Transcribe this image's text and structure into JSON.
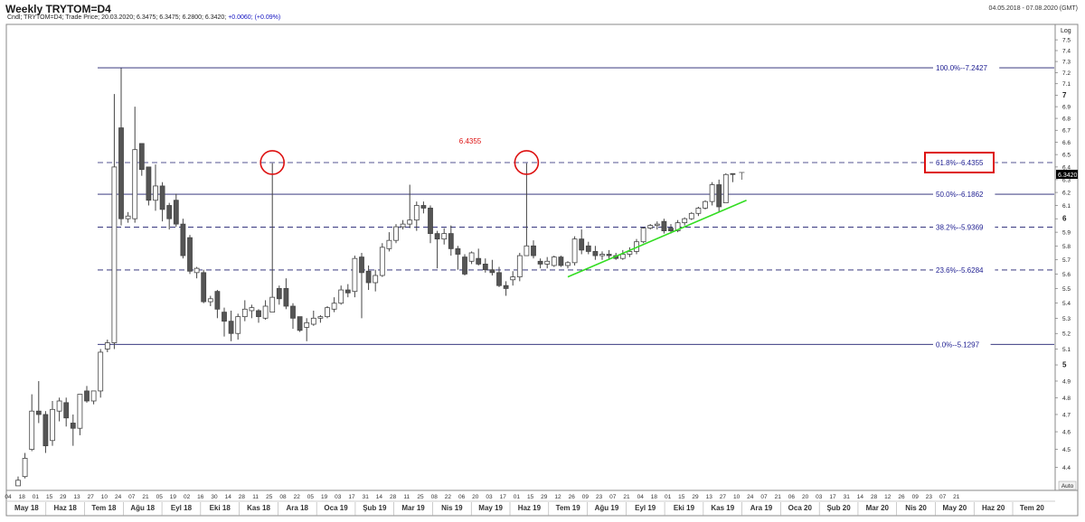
{
  "window_title": "Weekly TRYTOM=D4",
  "date_range": "04.05.2018 - 07.08.2020 (GMT)",
  "info": {
    "ric": "Cndl; TRYTOM=D4; Trade Price; 20.03.2020; 6.3475; 6.3475; 6.2800; 6.3420;",
    "change": "+0.0060; (+0.09%)"
  },
  "auto_label": "Auto",
  "colors": {
    "frame": "#888888",
    "candle_up_fill": "#ffffff",
    "candle_down_fill": "#555555",
    "candle_outline": "#444444",
    "fib_line": "#1c1c6e",
    "fib_label": "#1c1c90",
    "highlight_red": "#dd1111",
    "trendline_green": "#33dd22",
    "price_tag_bg": "#000000",
    "price_tag_text": "#ffffff"
  },
  "chart_data": {
    "type": "candlestick",
    "y_scale": "log",
    "y_axis_label": "Log",
    "ylim": [
      4.29,
      7.62
    ],
    "y_ticks": [
      "4.4",
      "4.5",
      "4.6",
      "4.7",
      "4.8",
      "4.9",
      "5",
      "5.1",
      "5.2",
      "5.3",
      "5.4",
      "5.5",
      "5.6",
      "5.7",
      "5.8",
      "5.9",
      "6",
      "6.1",
      "6.2",
      "6.3",
      "6.4",
      "6.5",
      "6.6",
      "6.7",
      "6.8",
      "6.9",
      "7",
      "7.1",
      "7.2",
      "7.3",
      "7.4",
      "7.5"
    ],
    "y_major_ticks": [
      "5",
      "6",
      "7"
    ],
    "x_day_ticks": [
      "04",
      "18",
      "01",
      "15",
      "29",
      "13",
      "27",
      "10",
      "24",
      "07",
      "21",
      "05",
      "19",
      "02",
      "16",
      "30",
      "14",
      "28",
      "11",
      "25",
      "08",
      "22",
      "05",
      "19",
      "03",
      "17",
      "31",
      "14",
      "28",
      "11",
      "25",
      "08",
      "22",
      "06",
      "20",
      "03",
      "17",
      "01",
      "15",
      "29",
      "12",
      "26",
      "09",
      "23",
      "07",
      "21",
      "04",
      "18",
      "01",
      "15",
      "29",
      "13",
      "27",
      "10",
      "24",
      "07",
      "21",
      "06",
      "20",
      "03",
      "17",
      "31",
      "14",
      "28",
      "12",
      "26",
      "09",
      "23",
      "07",
      "21"
    ],
    "x_month_labels": [
      "May 18",
      "Haz 18",
      "Tem 18",
      "Ağu 18",
      "Eyl 18",
      "Eki 18",
      "Kas 18",
      "Ara 18",
      "Oca 19",
      "Şub 19",
      "Mar 19",
      "Nis 19",
      "May 19",
      "Haz 19",
      "Tem 19",
      "Ağu 19",
      "Eyl 19",
      "Eki 19",
      "Kas 19",
      "Ara 19",
      "Oca 20",
      "Şub 20",
      "Mar 20",
      "Nis 20",
      "May 20",
      "Haz 20",
      "Tem 20"
    ],
    "candles": [
      [
        4.3,
        4.35,
        4.3,
        4.33
      ],
      [
        4.35,
        4.48,
        4.34,
        4.45
      ],
      [
        4.5,
        4.82,
        4.49,
        4.72
      ],
      [
        4.72,
        4.9,
        4.65,
        4.7
      ],
      [
        4.7,
        4.72,
        4.48,
        4.52
      ],
      [
        4.55,
        4.78,
        4.52,
        4.73
      ],
      [
        4.72,
        4.8,
        4.66,
        4.78
      ],
      [
        4.77,
        4.8,
        4.63,
        4.68
      ],
      [
        4.65,
        4.7,
        4.52,
        4.62
      ],
      [
        4.62,
        4.82,
        4.58,
        4.82
      ],
      [
        4.84,
        4.87,
        4.77,
        4.78
      ],
      [
        4.78,
        4.84,
        4.76,
        4.84
      ],
      [
        4.84,
        5.1,
        4.8,
        5.08
      ],
      [
        5.1,
        5.16,
        5.08,
        5.14
      ],
      [
        5.14,
        7.01,
        5.1,
        6.4
      ],
      [
        6.72,
        7.24,
        5.95,
        6.0
      ],
      [
        6.0,
        6.05,
        5.97,
        6.02
      ],
      [
        6.0,
        6.9,
        5.97,
        6.54
      ],
      [
        6.59,
        6.59,
        6.33,
        6.38
      ],
      [
        6.4,
        6.4,
        6.1,
        6.14
      ],
      [
        6.14,
        6.42,
        6.06,
        6.25
      ],
      [
        6.25,
        6.28,
        5.98,
        6.07
      ],
      [
        6.1,
        6.12,
        5.92,
        6.0
      ],
      [
        6.14,
        6.19,
        5.94,
        5.96
      ],
      [
        5.96,
        6.0,
        5.71,
        5.73
      ],
      [
        5.86,
        5.88,
        5.6,
        5.62
      ],
      [
        5.61,
        5.65,
        5.57,
        5.64
      ],
      [
        5.61,
        5.63,
        5.4,
        5.41
      ],
      [
        5.41,
        5.45,
        5.38,
        5.43
      ],
      [
        5.48,
        5.49,
        5.3,
        5.36
      ],
      [
        5.34,
        5.37,
        5.18,
        5.28
      ],
      [
        5.28,
        5.35,
        5.15,
        5.2
      ],
      [
        5.2,
        5.33,
        5.16,
        5.31
      ],
      [
        5.31,
        5.42,
        5.28,
        5.36
      ],
      [
        5.35,
        5.39,
        5.3,
        5.37
      ],
      [
        5.35,
        5.36,
        5.27,
        5.31
      ],
      [
        5.3,
        5.42,
        5.29,
        5.38
      ],
      [
        5.34,
        6.43,
        5.34,
        5.44
      ],
      [
        5.5,
        5.52,
        5.39,
        5.43
      ],
      [
        5.5,
        5.57,
        5.36,
        5.38
      ],
      [
        5.38,
        5.4,
        5.23,
        5.3
      ],
      [
        5.31,
        5.31,
        5.21,
        5.22
      ],
      [
        5.24,
        5.3,
        5.15,
        5.27
      ],
      [
        5.26,
        5.35,
        5.25,
        5.3
      ],
      [
        5.3,
        5.32,
        5.27,
        5.31
      ],
      [
        5.31,
        5.38,
        5.3,
        5.37
      ],
      [
        5.36,
        5.44,
        5.34,
        5.4
      ],
      [
        5.4,
        5.52,
        5.39,
        5.49
      ],
      [
        5.49,
        5.53,
        5.44,
        5.47
      ],
      [
        5.48,
        5.73,
        5.44,
        5.71
      ],
      [
        5.72,
        5.75,
        5.3,
        5.61
      ],
      [
        5.62,
        5.66,
        5.49,
        5.54
      ],
      [
        5.54,
        5.63,
        5.48,
        5.59
      ],
      [
        5.59,
        5.82,
        5.58,
        5.79
      ],
      [
        5.78,
        5.9,
        5.76,
        5.84
      ],
      [
        5.84,
        5.96,
        5.82,
        5.94
      ],
      [
        5.94,
        5.99,
        5.92,
        5.96
      ],
      [
        5.96,
        6.26,
        5.93,
        5.99
      ],
      [
        5.99,
        6.13,
        5.91,
        6.1
      ],
      [
        6.1,
        6.13,
        6.04,
        6.08
      ],
      [
        6.08,
        6.1,
        5.82,
        5.89
      ],
      [
        5.89,
        5.91,
        5.64,
        5.85
      ],
      [
        5.85,
        5.93,
        5.81,
        5.89
      ],
      [
        5.89,
        5.95,
        5.73,
        5.78
      ],
      [
        5.78,
        5.8,
        5.63,
        5.74
      ],
      [
        5.72,
        5.74,
        5.59,
        5.6
      ],
      [
        5.69,
        5.76,
        5.67,
        5.75
      ],
      [
        5.71,
        5.78,
        5.66,
        5.67
      ],
      [
        5.67,
        5.71,
        5.61,
        5.63
      ],
      [
        5.63,
        5.7,
        5.59,
        5.61
      ],
      [
        5.61,
        5.65,
        5.51,
        5.52
      ],
      [
        5.52,
        5.55,
        5.45,
        5.5
      ],
      [
        5.56,
        5.62,
        5.52,
        5.58
      ],
      [
        5.58,
        5.75,
        5.55,
        5.73
      ],
      [
        5.73,
        6.43,
        5.73,
        5.8
      ],
      [
        5.8,
        5.84,
        5.71,
        5.73
      ],
      [
        5.69,
        5.71,
        5.64,
        5.67
      ],
      [
        5.67,
        5.72,
        5.64,
        5.69
      ],
      [
        5.66,
        5.73,
        5.65,
        5.72
      ],
      [
        5.72,
        5.73,
        5.65,
        5.66
      ],
      [
        5.66,
        5.69,
        5.64,
        5.68
      ],
      [
        5.68,
        5.87,
        5.66,
        5.85
      ],
      [
        5.85,
        5.92,
        5.74,
        5.77
      ],
      [
        5.8,
        5.83,
        5.74,
        5.76
      ],
      [
        5.76,
        5.8,
        5.7,
        5.73
      ],
      [
        5.73,
        5.76,
        5.7,
        5.74
      ],
      [
        5.74,
        5.77,
        5.7,
        5.73
      ],
      [
        5.73,
        5.75,
        5.7,
        5.71
      ],
      [
        5.71,
        5.77,
        5.7,
        5.74
      ],
      [
        5.74,
        5.79,
        5.72,
        5.76
      ],
      [
        5.76,
        5.85,
        5.74,
        5.83
      ],
      [
        5.83,
        5.94,
        5.82,
        5.93
      ],
      [
        5.93,
        5.96,
        5.92,
        5.95
      ],
      [
        5.95,
        5.98,
        5.92,
        5.96
      ],
      [
        5.98,
        6.0,
        5.89,
        5.91
      ],
      [
        5.93,
        5.96,
        5.89,
        5.91
      ],
      [
        5.91,
        5.99,
        5.9,
        5.97
      ],
      [
        5.97,
        6.01,
        5.95,
        6.0
      ],
      [
        6.0,
        6.05,
        5.99,
        6.04
      ],
      [
        6.04,
        6.09,
        6.02,
        6.08
      ],
      [
        6.08,
        6.14,
        6.07,
        6.13
      ],
      [
        6.13,
        6.28,
        6.1,
        6.26
      ],
      [
        6.26,
        6.3,
        6.05,
        6.09
      ],
      [
        6.12,
        6.35,
        6.12,
        6.34
      ],
      [
        6.3475,
        6.3475,
        6.28,
        6.342
      ]
    ],
    "current_price": "6.3420",
    "fib_levels": [
      {
        "label": "100.0%--7.2427",
        "value": 7.2427,
        "style": "solid"
      },
      {
        "label": "61.8%--6.4355",
        "value": 6.4355,
        "style": "dashed"
      },
      {
        "label": "50.0%--6.1862",
        "value": 6.1862,
        "style": "solid"
      },
      {
        "label": "38.2%--5.9369",
        "value": 5.9369,
        "style": "dashed"
      },
      {
        "label": "23.6%--5.6284",
        "value": 5.6284,
        "style": "dashed"
      },
      {
        "label": "0.0%--5.1297",
        "value": 5.1297,
        "style": "solid"
      }
    ],
    "annotations": {
      "red_value_text": "6.4355",
      "red_value_y": 6.61,
      "circled_highs": [
        {
          "index": 37,
          "price": 6.4355
        },
        {
          "index": 74,
          "price": 6.4355
        }
      ],
      "boxed_fib_label": "61.8%--6.4355",
      "trendline": [
        {
          "index": 80,
          "price": 5.58
        },
        {
          "index": 106,
          "price": 6.14
        }
      ]
    }
  }
}
